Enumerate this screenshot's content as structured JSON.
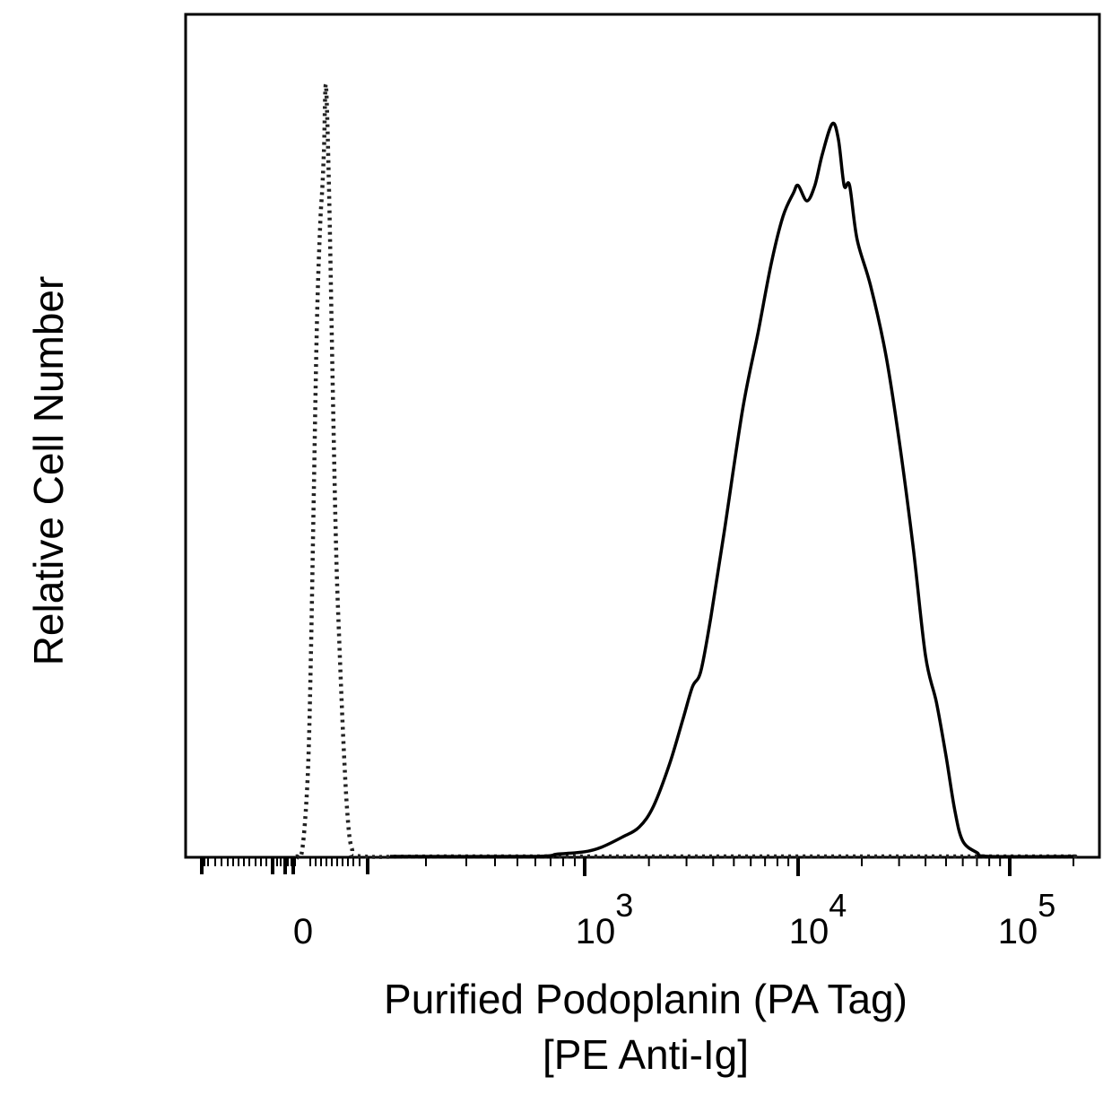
{
  "chart_data": {
    "type": "line",
    "title": "",
    "xlabel": [
      "Purified Podoplanin (PA Tag)",
      "[PE Anti-Ig]"
    ],
    "ylabel": "Relative Cell Number",
    "x_scale": "biexponential (linear near 0, log above)",
    "xlim_log10": [
      1.7,
      5.3
    ],
    "ylim": [
      0,
      100
    ],
    "x_ticks": [
      {
        "label": "0",
        "value": 0
      },
      {
        "label": "10",
        "exp": "3",
        "value": 1000
      },
      {
        "label": "10",
        "exp": "4",
        "value": 10000
      },
      {
        "label": "10",
        "exp": "5",
        "value": 100000
      }
    ],
    "grid": false,
    "legend": "none",
    "series": [
      {
        "style": "dotted",
        "color": "#222222",
        "points": [
          [
            -30,
            0
          ],
          [
            -15,
            0.8
          ],
          [
            0,
            10
          ],
          [
            10,
            25
          ],
          [
            20,
            48
          ],
          [
            30,
            70
          ],
          [
            40,
            82
          ],
          [
            47,
            87
          ],
          [
            52,
            92
          ],
          [
            58,
            100
          ],
          [
            68,
            86
          ],
          [
            80,
            60
          ],
          [
            90,
            40
          ],
          [
            100,
            28
          ],
          [
            112,
            16
          ],
          [
            125,
            6
          ],
          [
            140,
            1
          ],
          [
            160,
            0
          ],
          [
            400,
            0
          ],
          [
            100000,
            0
          ],
          [
            200000,
            0
          ]
        ]
      },
      {
        "style": "solid",
        "color": "#000000",
        "points": [
          [
            200,
            0
          ],
          [
            650,
            0
          ],
          [
            800,
            0.3
          ],
          [
            1000,
            0.6
          ],
          [
            1200,
            1.2
          ],
          [
            1500,
            2.5
          ],
          [
            1800,
            3.8
          ],
          [
            2100,
            6.5
          ],
          [
            2500,
            12
          ],
          [
            2900,
            18
          ],
          [
            3200,
            22
          ],
          [
            3500,
            24
          ],
          [
            3900,
            31
          ],
          [
            4500,
            42
          ],
          [
            5500,
            58
          ],
          [
            6500,
            68
          ],
          [
            7500,
            77
          ],
          [
            8500,
            83
          ],
          [
            9500,
            86
          ],
          [
            10000,
            87
          ],
          [
            11000,
            85
          ],
          [
            12000,
            87
          ],
          [
            13000,
            91
          ],
          [
            14500,
            95
          ],
          [
            15500,
            93
          ],
          [
            16500,
            87
          ],
          [
            17500,
            87
          ],
          [
            19000,
            80
          ],
          [
            22000,
            74
          ],
          [
            26000,
            65
          ],
          [
            30000,
            54
          ],
          [
            35000,
            40
          ],
          [
            40000,
            26
          ],
          [
            45000,
            20
          ],
          [
            50000,
            13
          ],
          [
            55000,
            6
          ],
          [
            60000,
            2
          ],
          [
            70000,
            0.5
          ],
          [
            80000,
            0
          ],
          [
            200000,
            0
          ]
        ]
      }
    ]
  }
}
